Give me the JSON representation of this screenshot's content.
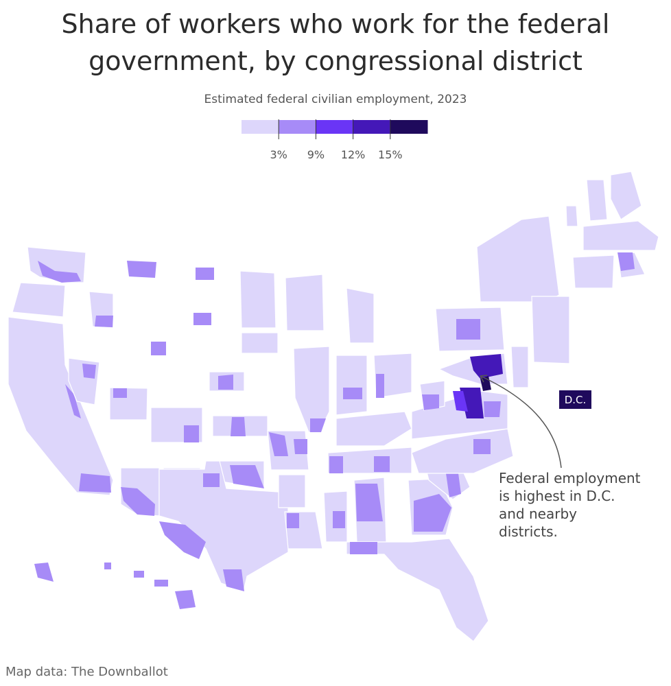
{
  "header": {
    "title_lines": [
      "Share of workers who work for the federal",
      "government, by congressional district"
    ],
    "subtitle": "Estimated federal civilian employment, 2023"
  },
  "legend": {
    "colors": [
      "#ddd6fb",
      "#a78bf7",
      "#6a35f6",
      "#4418b8",
      "#1f0a5c"
    ],
    "ticks": [
      {
        "value": 3,
        "label": "3%"
      },
      {
        "value": 9,
        "label": "9%"
      },
      {
        "value": 12,
        "label": "12%"
      },
      {
        "value": 15,
        "label": "15%"
      }
    ]
  },
  "annotations": {
    "dc_label": "D.C.",
    "note_lines": [
      "Federal employment",
      "is highest in D.C.",
      "and nearby",
      "districts."
    ]
  },
  "source": "Map data: The Downballot"
}
